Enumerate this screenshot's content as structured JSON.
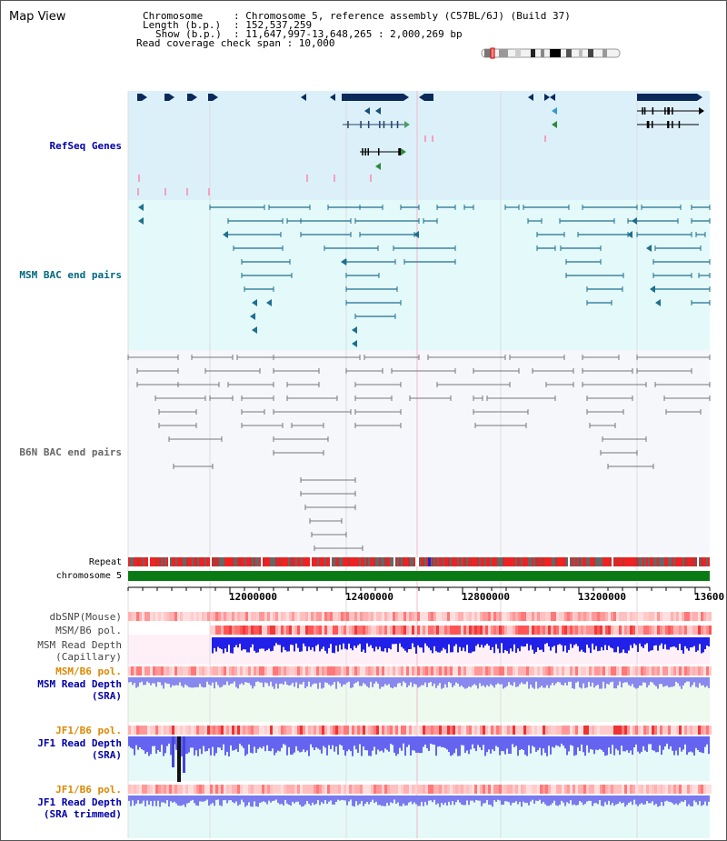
{
  "window": {
    "title": "Map View"
  },
  "header": {
    "chromosome_key": "Chromosome",
    "chromosome_value": ": Chromosome 5, reference assembly (C57BL/6J) (Build 37)",
    "length_key": "Length (b.p.)",
    "length_value": ": 152,537,259",
    "show_key": "Show (b.p.)",
    "show_value": ": 11,647,997-13,648,265 : 2,000,269 bp",
    "coverage_line": "Read coverage check span : 10,000"
  },
  "tracks": {
    "refseq": "RefSeq Genes",
    "msm_bac": "MSM BAC end pairs",
    "b6n_bac": "B6N BAC end pairs",
    "repeat": "Repeat",
    "chromosome": "chromosome 5",
    "dbsnp": "dbSNP(Mouse)",
    "msm_b6_pol_1": "MSM/B6 pol.",
    "msm_depth_cap_1": "MSM Read Depth",
    "msm_depth_cap_2": "(Capillary)",
    "msm_b6_pol_2": "MSM/B6 pol.",
    "msm_depth_sra_1": "MSM Read Depth",
    "msm_depth_sra_2": "(SRA)",
    "jf1_b6_pol_1": "JF1/B6 pol.",
    "jf1_depth_sra_1": "JF1 Read Depth",
    "jf1_depth_sra_2": "(SRA)",
    "jf1_b6_pol_2": "JF1/B6 pol.",
    "jf1_depth_trim_1": "JF1 Read Depth",
    "jf1_depth_trim_2": "(SRA trimmed)"
  },
  "axis": {
    "ticks": [
      "12000000",
      "12400000",
      "12800000",
      "13200000",
      "13600"
    ]
  },
  "colors": {
    "refseq_bg": "#dcf0fa",
    "msm_bg": "#e4f9fa",
    "b6n_bg": "#f6f7fb",
    "chrom_green": "#0a7a14",
    "label_blue": "#0000aa",
    "label_teal": "#006680",
    "label_gray": "#666666",
    "label_orange": "#dd8800"
  }
}
